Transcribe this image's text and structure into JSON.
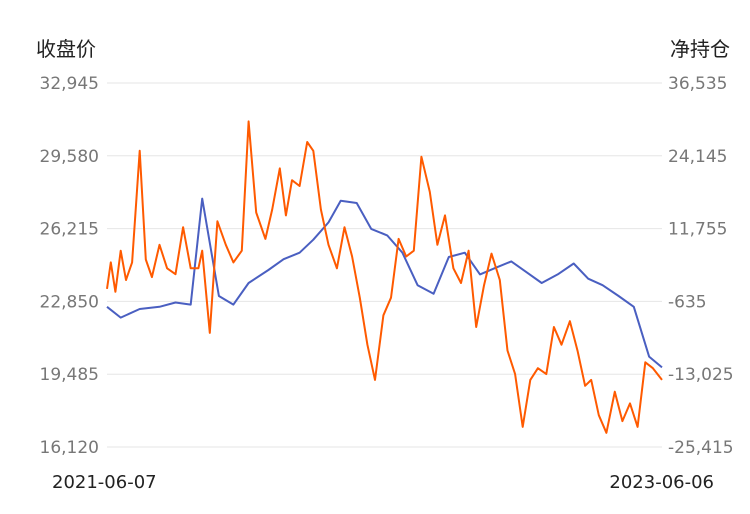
{
  "chart_data": {
    "type": "line",
    "y_left_title": "收盘价",
    "y_right_title": "净持仓",
    "y_left_ticks": [
      "32,945",
      "29,580",
      "26,215",
      "22,850",
      "19,485",
      "16,120"
    ],
    "y_right_ticks": [
      "36,535",
      "24,145",
      "11,755",
      "-635",
      "-13,025",
      "-25,415"
    ],
    "y_left_range": [
      16120,
      32945
    ],
    "y_right_range": [
      -25415,
      36535
    ],
    "x_range": [
      "2021-06-07",
      "2023-06-06"
    ],
    "x_tick_labels": [
      "2021-06-07",
      "2023-06-06"
    ],
    "grid": true,
    "series": [
      {
        "axis": "left",
        "color": "#4a5fc1",
        "x": [
          "2021-06-07",
          "2021-06-25",
          "2021-07-20",
          "2021-08-15",
          "2021-09-05",
          "2021-09-25",
          "2021-10-10",
          "2021-11-01",
          "2021-11-20",
          "2021-12-10",
          "2022-01-05",
          "2022-01-25",
          "2022-02-15",
          "2022-03-05",
          "2022-03-25",
          "2022-04-10",
          "2022-05-01",
          "2022-05-20",
          "2022-06-10",
          "2022-06-30",
          "2022-07-20",
          "2022-08-10",
          "2022-08-30",
          "2022-09-20",
          "2022-10-10",
          "2022-10-30",
          "2022-11-20",
          "2022-12-10",
          "2022-12-30",
          "2023-01-20",
          "2023-02-10",
          "2023-03-01",
          "2023-03-20",
          "2023-04-10",
          "2023-04-30",
          "2023-05-20",
          "2023-06-06"
        ],
        "values": [
          22600,
          22100,
          22500,
          22600,
          22800,
          22700,
          27600,
          23100,
          22700,
          23700,
          24300,
          24800,
          25100,
          25700,
          26500,
          27500,
          27400,
          26200,
          25900,
          25100,
          23600,
          23200,
          24900,
          25100,
          24100,
          24400,
          24700,
          24200,
          23700,
          24100,
          24600,
          23900,
          23600,
          23100,
          22600,
          20300,
          19800
        ]
      },
      {
        "axis": "right",
        "color": "#ff5a00",
        "x": [
          "2021-06-07",
          "2021-06-12",
          "2021-06-18",
          "2021-06-25",
          "2021-07-02",
          "2021-07-10",
          "2021-07-20",
          "2021-07-28",
          "2021-08-05",
          "2021-08-15",
          "2021-08-25",
          "2021-09-05",
          "2021-09-15",
          "2021-09-25",
          "2021-10-05",
          "2021-10-10",
          "2021-10-20",
          "2021-10-30",
          "2021-11-10",
          "2021-11-20",
          "2021-12-01",
          "2021-12-10",
          "2021-12-20",
          "2022-01-01",
          "2022-01-10",
          "2022-01-20",
          "2022-01-28",
          "2022-02-05",
          "2022-02-15",
          "2022-02-25",
          "2022-03-05",
          "2022-03-15",
          "2022-03-25",
          "2022-04-05",
          "2022-04-15",
          "2022-04-25",
          "2022-05-05",
          "2022-05-15",
          "2022-05-25",
          "2022-06-05",
          "2022-06-15",
          "2022-06-25",
          "2022-07-05",
          "2022-07-15",
          "2022-07-25",
          "2022-08-05",
          "2022-08-15",
          "2022-08-25",
          "2022-09-05",
          "2022-09-15",
          "2022-09-25",
          "2022-10-05",
          "2022-10-15",
          "2022-10-25",
          "2022-11-05",
          "2022-11-15",
          "2022-11-25",
          "2022-12-05",
          "2022-12-15",
          "2022-12-25",
          "2023-01-05",
          "2023-01-15",
          "2023-01-25",
          "2023-02-05",
          "2023-02-15",
          "2023-02-25",
          "2023-03-05",
          "2023-03-15",
          "2023-03-25",
          "2023-04-05",
          "2023-04-15",
          "2023-04-25",
          "2023-05-05",
          "2023-05-15",
          "2023-05-25",
          "2023-06-06"
        ],
        "values": [
          1500,
          6000,
          1000,
          8000,
          3000,
          6000,
          25000,
          6500,
          3500,
          9000,
          5000,
          4000,
          12000,
          5000,
          5000,
          8000,
          -6000,
          13000,
          9000,
          6000,
          8000,
          30000,
          14500,
          10000,
          15000,
          22000,
          14000,
          20000,
          19000,
          26500,
          25000,
          15000,
          9000,
          5000,
          12000,
          7000,
          0,
          -8000,
          -14000,
          -3000,
          0,
          10000,
          7000,
          8000,
          24000,
          18000,
          9000,
          14000,
          5000,
          2500,
          8000,
          -5000,
          2000,
          7500,
          3000,
          -9000,
          -13000,
          -22000,
          -14000,
          -12000,
          -13000,
          -5000,
          -8000,
          -4000,
          -9000,
          -15000,
          -14000,
          -20000,
          -23000,
          -16000,
          -21000,
          -18000,
          -22000,
          -11000,
          -12000,
          -14000
        ]
      }
    ]
  }
}
